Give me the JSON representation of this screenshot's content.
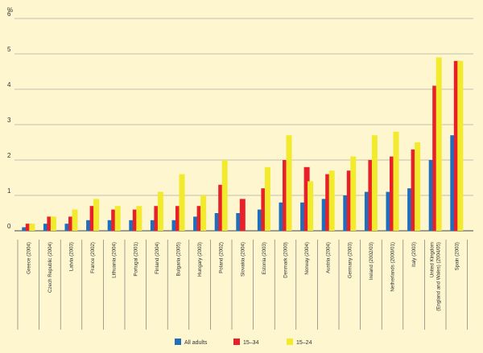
{
  "chart_data": {
    "type": "bar",
    "title": "",
    "xlabel": "",
    "ylabel": "%",
    "ylim": [
      0,
      6
    ],
    "yticks": [
      0,
      1,
      2,
      3,
      4,
      5,
      6
    ],
    "grid": true,
    "legend_position": "bottom",
    "categories": [
      [
        "Greece (2004)"
      ],
      [
        "Czech Republic (2004)"
      ],
      [
        "Latvia (2003)"
      ],
      [
        "France (2002)"
      ],
      [
        "Lithuania (2004)"
      ],
      [
        "Portugal (2001)"
      ],
      [
        "Finland (2004)"
      ],
      [
        "Bulgaria (2005)"
      ],
      [
        "Hungary (2003)"
      ],
      [
        "Poland (2002)"
      ],
      [
        "Slovakia (2004)"
      ],
      [
        "Estonia (2003)"
      ],
      [
        "Denmark (2000)"
      ],
      [
        "Norway (2004)"
      ],
      [
        "Austria (2004)"
      ],
      [
        "Germany (2003)"
      ],
      [
        "Ireland (2002/03)"
      ],
      [
        "Netherlands (2000/01)"
      ],
      [
        "Italy (2003)"
      ],
      [
        "United Kingdom",
        "(England and Wales) (2004/05)"
      ],
      [
        "Spain (2003)"
      ]
    ],
    "series": [
      {
        "name": "All adults",
        "color": "#1f6fbf",
        "values": [
          0.1,
          0.2,
          0.2,
          0.3,
          0.3,
          0.3,
          0.3,
          0.3,
          0.4,
          0.5,
          0.5,
          0.6,
          0.8,
          0.8,
          0.9,
          1.0,
          1.1,
          1.1,
          1.2,
          2.0,
          2.7
        ]
      },
      {
        "name": "15–34",
        "color": "#e8202a",
        "values": [
          0.2,
          0.4,
          0.4,
          0.7,
          0.6,
          0.6,
          0.7,
          0.7,
          0.7,
          1.3,
          0.9,
          1.2,
          2.0,
          1.8,
          1.6,
          1.7,
          2.0,
          2.1,
          2.3,
          4.1,
          4.8
        ]
      },
      {
        "name": "15–24",
        "color": "#f2ea2c",
        "values": [
          0.2,
          0.4,
          0.6,
          0.9,
          0.7,
          0.7,
          1.1,
          1.6,
          1.0,
          2.0,
          null,
          1.8,
          2.7,
          1.4,
          1.7,
          2.1,
          2.7,
          2.8,
          2.5,
          4.9,
          4.8
        ]
      }
    ]
  }
}
